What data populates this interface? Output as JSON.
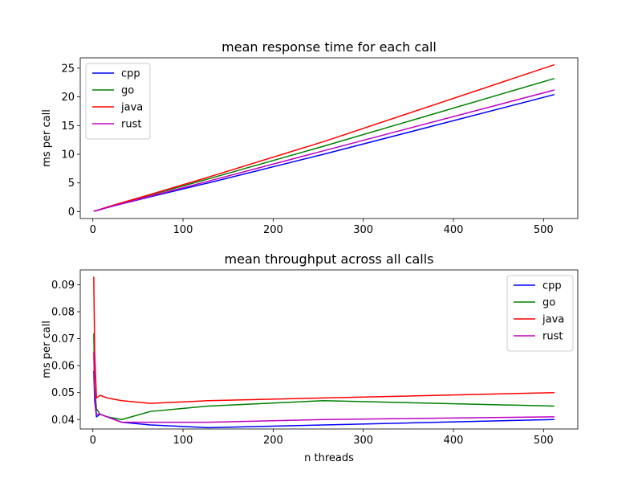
{
  "chart_data": [
    {
      "type": "line",
      "title": "mean response time for each call",
      "xlabel": "",
      "ylabel": "ms per call",
      "xlim": [
        -14,
        538
      ],
      "ylim": [
        -1.2,
        26.8
      ],
      "xticks": [
        0,
        100,
        200,
        300,
        400,
        500
      ],
      "yticks": [
        0,
        5,
        10,
        15,
        20,
        25
      ],
      "legend_position": "top-left",
      "grid": false,
      "series": [
        {
          "name": "cpp",
          "color": "#0000ff",
          "x": [
            1,
            2,
            4,
            8,
            16,
            32,
            64,
            128,
            256,
            512
          ],
          "y": [
            0.1,
            0.12,
            0.16,
            0.35,
            0.7,
            1.35,
            2.6,
            5.0,
            10.0,
            20.4
          ]
        },
        {
          "name": "go",
          "color": "#008000",
          "x": [
            1,
            2,
            4,
            8,
            16,
            32,
            64,
            128,
            256,
            512
          ],
          "y": [
            0.1,
            0.13,
            0.18,
            0.38,
            0.78,
            1.5,
            2.9,
            5.7,
            11.4,
            23.2
          ]
        },
        {
          "name": "java",
          "color": "#ff0000",
          "x": [
            1,
            2,
            4,
            8,
            16,
            32,
            64,
            128,
            256,
            512
          ],
          "y": [
            0.1,
            0.13,
            0.19,
            0.4,
            0.8,
            1.55,
            3.0,
            6.0,
            12.2,
            25.6
          ]
        },
        {
          "name": "rust",
          "color": "#bf00bf",
          "x": [
            1,
            2,
            4,
            8,
            16,
            32,
            64,
            128,
            256,
            512
          ],
          "y": [
            0.1,
            0.12,
            0.17,
            0.36,
            0.72,
            1.38,
            2.7,
            5.3,
            10.6,
            21.2
          ]
        }
      ]
    },
    {
      "type": "line",
      "title": "mean throughput across all calls",
      "xlabel": "n threads",
      "ylabel": "ms per call",
      "xlim": [
        -14,
        538
      ],
      "ylim": [
        0.0365,
        0.0955
      ],
      "xticks": [
        0,
        100,
        200,
        300,
        400,
        500
      ],
      "yticks": [
        0.04,
        0.05,
        0.06,
        0.07,
        0.08,
        0.09
      ],
      "legend_position": "top-right",
      "grid": false,
      "series": [
        {
          "name": "cpp",
          "color": "#0000ff",
          "x": [
            1,
            2,
            4,
            8,
            16,
            32,
            64,
            128,
            256,
            512
          ],
          "y": [
            0.058,
            0.047,
            0.041,
            0.042,
            0.041,
            0.039,
            0.038,
            0.037,
            0.038,
            0.04
          ]
        },
        {
          "name": "go",
          "color": "#008000",
          "x": [
            1,
            2,
            4,
            8,
            16,
            32,
            64,
            128,
            256,
            512
          ],
          "y": [
            0.072,
            0.052,
            0.044,
            0.042,
            0.041,
            0.04,
            0.043,
            0.045,
            0.047,
            0.045
          ]
        },
        {
          "name": "java",
          "color": "#ff0000",
          "x": [
            1,
            2,
            4,
            8,
            16,
            32,
            64,
            128,
            256,
            512
          ],
          "y": [
            0.093,
            0.065,
            0.048,
            0.049,
            0.048,
            0.047,
            0.046,
            0.047,
            0.048,
            0.05
          ]
        },
        {
          "name": "rust",
          "color": "#bf00bf",
          "x": [
            1,
            2,
            4,
            8,
            16,
            32,
            64,
            128,
            256,
            512
          ],
          "y": [
            0.065,
            0.05,
            0.042,
            0.042,
            0.041,
            0.039,
            0.039,
            0.039,
            0.04,
            0.041
          ]
        }
      ]
    }
  ]
}
